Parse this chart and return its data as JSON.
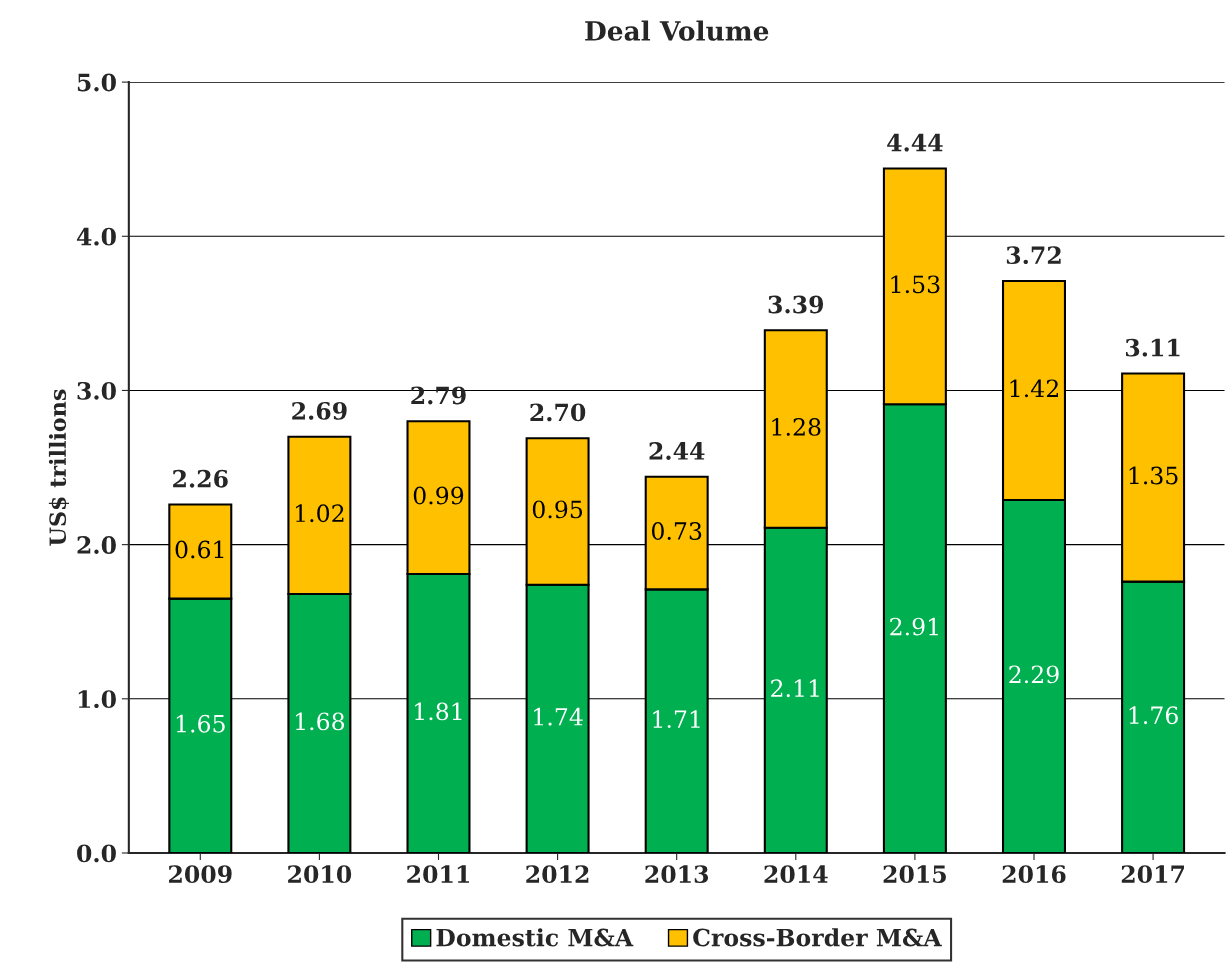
{
  "chart_data": {
    "type": "bar",
    "title": "Deal Volume",
    "ylabel": "US$ trillions",
    "categories": [
      "2009",
      "2010",
      "2011",
      "2012",
      "2013",
      "2014",
      "2015",
      "2016",
      "2017"
    ],
    "series": [
      {
        "name": "Domestic M&A",
        "color": "#00b050",
        "values": [
          1.65,
          1.68,
          1.81,
          1.74,
          1.71,
          2.11,
          2.91,
          2.29,
          1.76
        ]
      },
      {
        "name": "Cross-Border M&A",
        "color": "#ffc000",
        "values": [
          0.61,
          1.02,
          0.99,
          0.95,
          0.73,
          1.28,
          1.53,
          1.42,
          1.35
        ]
      }
    ],
    "stacked": true,
    "data_labels": true,
    "totals": [
      "2.26",
      "2.69",
      "2.79",
      "2.70",
      "2.44",
      "3.39",
      "4.44",
      "3.72",
      "3.11"
    ],
    "ylim": [
      0,
      5
    ],
    "yticks": [
      {
        "value": 0,
        "label": "0.0"
      },
      {
        "value": 1,
        "label": "1.0"
      },
      {
        "value": 2,
        "label": "2.0"
      },
      {
        "value": 3,
        "label": "3.0"
      },
      {
        "value": 4,
        "label": "4.0"
      },
      {
        "value": 5,
        "label": "5.0"
      }
    ],
    "grid": "y",
    "legend": "bottom"
  }
}
